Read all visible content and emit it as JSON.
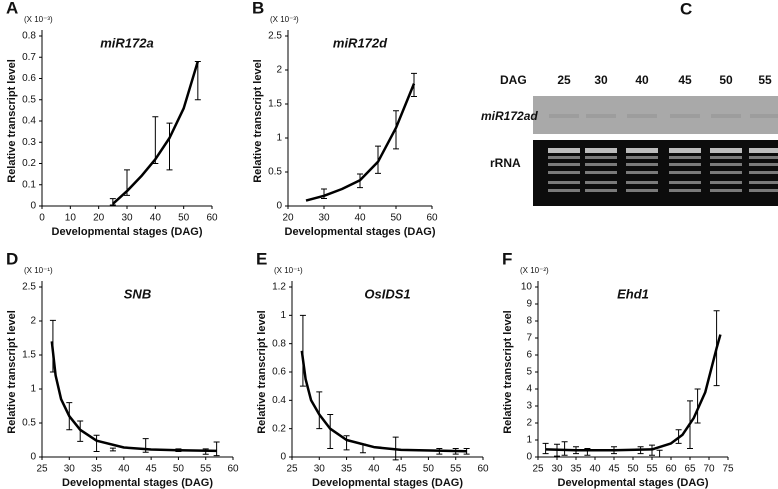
{
  "chart_data": [
    {
      "type": "errorbar-curve",
      "panel": "A",
      "title": "miR172a",
      "scale_label": "(X 10⁻³)",
      "x_label": "Developmental stages (DAG)",
      "y_label": "Relative transcript level",
      "xlim": [
        0,
        60
      ],
      "xticks": [
        0,
        10,
        20,
        30,
        40,
        50,
        60
      ],
      "ylim": [
        0,
        0.8
      ],
      "yticks": [
        0,
        0.1,
        0.2,
        0.3,
        0.4,
        0.5,
        0.6,
        0.7,
        0.8
      ],
      "x": [
        25,
        30,
        40,
        45,
        55
      ],
      "values": [
        0.02,
        0.11,
        0.31,
        0.28,
        0.59
      ],
      "errors": [
        0.015,
        0.06,
        0.11,
        0.11,
        0.09
      ],
      "curve": {
        "x": [
          25,
          30,
          35,
          40,
          45,
          50,
          55
        ],
        "values": [
          0.01,
          0.07,
          0.14,
          0.22,
          0.32,
          0.46,
          0.68
        ]
      },
      "color": "#000000"
    },
    {
      "type": "errorbar-curve",
      "panel": "B",
      "title": "miR172d",
      "scale_label": "(X 10⁻³)",
      "x_label": "Developmental stages (DAG)",
      "y_label": "Relative transcript level",
      "xlim": [
        20,
        60
      ],
      "xticks": [
        20,
        30,
        40,
        50,
        60
      ],
      "ylim": [
        0,
        2.5
      ],
      "yticks": [
        0,
        0.5,
        1,
        1.5,
        2,
        2.5
      ],
      "x": [
        30,
        40,
        45,
        50,
        55
      ],
      "values": [
        0.18,
        0.37,
        0.68,
        1.12,
        1.78
      ],
      "errors": [
        0.07,
        0.1,
        0.2,
        0.28,
        0.17
      ],
      "curve": {
        "x": [
          25,
          30,
          35,
          40,
          45,
          50,
          55
        ],
        "values": [
          0.08,
          0.15,
          0.25,
          0.38,
          0.65,
          1.15,
          1.8
        ]
      },
      "color": "#000000"
    },
    {
      "type": "errorbar-curve",
      "panel": "D",
      "title": "SNB",
      "scale_label": "(X 10⁻¹)",
      "x_label": "Developmental stages (DAG)",
      "y_label": "Relative transcript level",
      "xlim": [
        25,
        60
      ],
      "xticks": [
        25,
        30,
        35,
        40,
        45,
        50,
        55,
        60
      ],
      "ylim": [
        0,
        2.5
      ],
      "yticks": [
        0,
        0.5,
        1,
        1.5,
        2,
        2.5
      ],
      "x": [
        27,
        30,
        32,
        35,
        38,
        44,
        50,
        55,
        57
      ],
      "values": [
        1.63,
        0.6,
        0.38,
        0.2,
        0.11,
        0.17,
        0.1,
        0.08,
        0.12
      ],
      "errors": [
        0.38,
        0.2,
        0.15,
        0.12,
        0.02,
        0.1,
        0.02,
        0.04,
        0.1
      ],
      "curve": {
        "x": [
          26.8,
          27.5,
          28.5,
          30,
          32,
          35,
          40,
          45,
          50,
          57
        ],
        "values": [
          1.7,
          1.2,
          0.85,
          0.6,
          0.4,
          0.24,
          0.14,
          0.11,
          0.1,
          0.09
        ]
      },
      "color": "#000000"
    },
    {
      "type": "errorbar-curve",
      "panel": "E",
      "title": "OsIDS1",
      "scale_label": "(X 10⁻¹)",
      "x_label": "Developmental stages (DAG)",
      "y_label": "Relative transcript level",
      "xlim": [
        25,
        60
      ],
      "xticks": [
        25,
        30,
        35,
        40,
        45,
        50,
        55,
        60
      ],
      "ylim": [
        0,
        1.2
      ],
      "yticks": [
        0,
        0.2,
        0.4,
        0.6,
        0.8,
        1,
        1.2
      ],
      "x": [
        27,
        30,
        32,
        35,
        38,
        44,
        52,
        55,
        57
      ],
      "values": [
        0.75,
        0.33,
        0.18,
        0.1,
        0.06,
        0.06,
        0.04,
        0.04,
        0.04
      ],
      "errors": [
        0.25,
        0.13,
        0.12,
        0.05,
        0.03,
        0.08,
        0.02,
        0.02,
        0.02
      ],
      "curve": {
        "x": [
          26.8,
          27.5,
          28.5,
          30,
          32,
          35,
          40,
          45,
          57
        ],
        "values": [
          0.75,
          0.55,
          0.4,
          0.3,
          0.2,
          0.12,
          0.07,
          0.05,
          0.04
        ]
      },
      "color": "#000000"
    },
    {
      "type": "errorbar-curve",
      "panel": "F",
      "title": "Ehd1",
      "scale_label": "(X 10⁻²)",
      "x_label": "Developmental stages (DAG)",
      "y_label": "Relative transcript level",
      "xlim": [
        25,
        75
      ],
      "xticks": [
        25,
        30,
        35,
        40,
        45,
        50,
        55,
        60,
        65,
        70,
        75
      ],
      "ylim": [
        0,
        10
      ],
      "yticks": [
        0,
        1,
        2,
        3,
        4,
        5,
        6,
        7,
        8,
        9,
        10
      ],
      "x": [
        27,
        30,
        32,
        35,
        38,
        45,
        52,
        55,
        57,
        62,
        65,
        67,
        72
      ],
      "values": [
        0.5,
        0.4,
        0.5,
        0.4,
        0.3,
        0.4,
        0.4,
        0.4,
        0.2,
        1.2,
        1.9,
        3,
        6.4
      ],
      "errors": [
        0.3,
        0.35,
        0.4,
        0.2,
        0.2,
        0.2,
        0.2,
        0.3,
        0.2,
        0.4,
        1.4,
        1,
        2.2
      ],
      "curve": {
        "x": [
          27,
          35,
          45,
          55,
          60,
          63,
          66,
          69,
          72,
          73
        ],
        "values": [
          0.45,
          0.4,
          0.4,
          0.45,
          0.8,
          1.3,
          2.3,
          3.8,
          6.4,
          7.2
        ]
      },
      "color": "#000000"
    }
  ],
  "gel": {
    "panel": "C",
    "header": "DAG",
    "lanes": [
      25,
      30,
      40,
      45,
      50,
      55
    ],
    "rows": [
      "miR172ad",
      "rRNA"
    ]
  }
}
